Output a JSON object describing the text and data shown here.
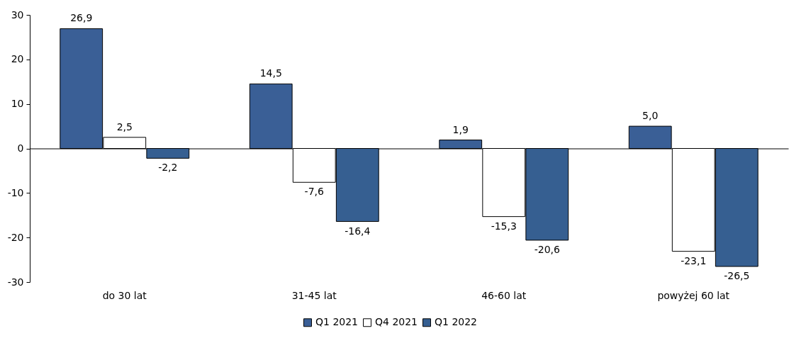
{
  "chart_data": {
    "type": "bar",
    "categories": [
      "do 30 lat",
      "31-45 lat",
      "46-60 lat",
      "powyżej 60 lat"
    ],
    "series": [
      {
        "name": "Q1 2021",
        "color": "#3a5f96",
        "values": [
          26.9,
          14.5,
          1.9,
          5.0
        ],
        "value_labels": [
          "26,9",
          "14,5",
          "1,9",
          "5,0"
        ]
      },
      {
        "name": "Q4 2021",
        "color": "#ffffff",
        "values": [
          2.5,
          -7.6,
          -15.3,
          -23.1
        ],
        "value_labels": [
          "2,5",
          "-7,6",
          "-15,3",
          "-23,1"
        ]
      },
      {
        "name": "Q1 2022",
        "color": "#365f91",
        "values": [
          -2.2,
          -16.4,
          -20.6,
          -26.5
        ],
        "value_labels": [
          "-2,2",
          "-16,4",
          "-20,6",
          "-26,5"
        ]
      }
    ],
    "ylim": [
      -30,
      30
    ],
    "yticks": [
      -30,
      -20,
      -10,
      0,
      10,
      20,
      30
    ],
    "legend": "bottom"
  }
}
